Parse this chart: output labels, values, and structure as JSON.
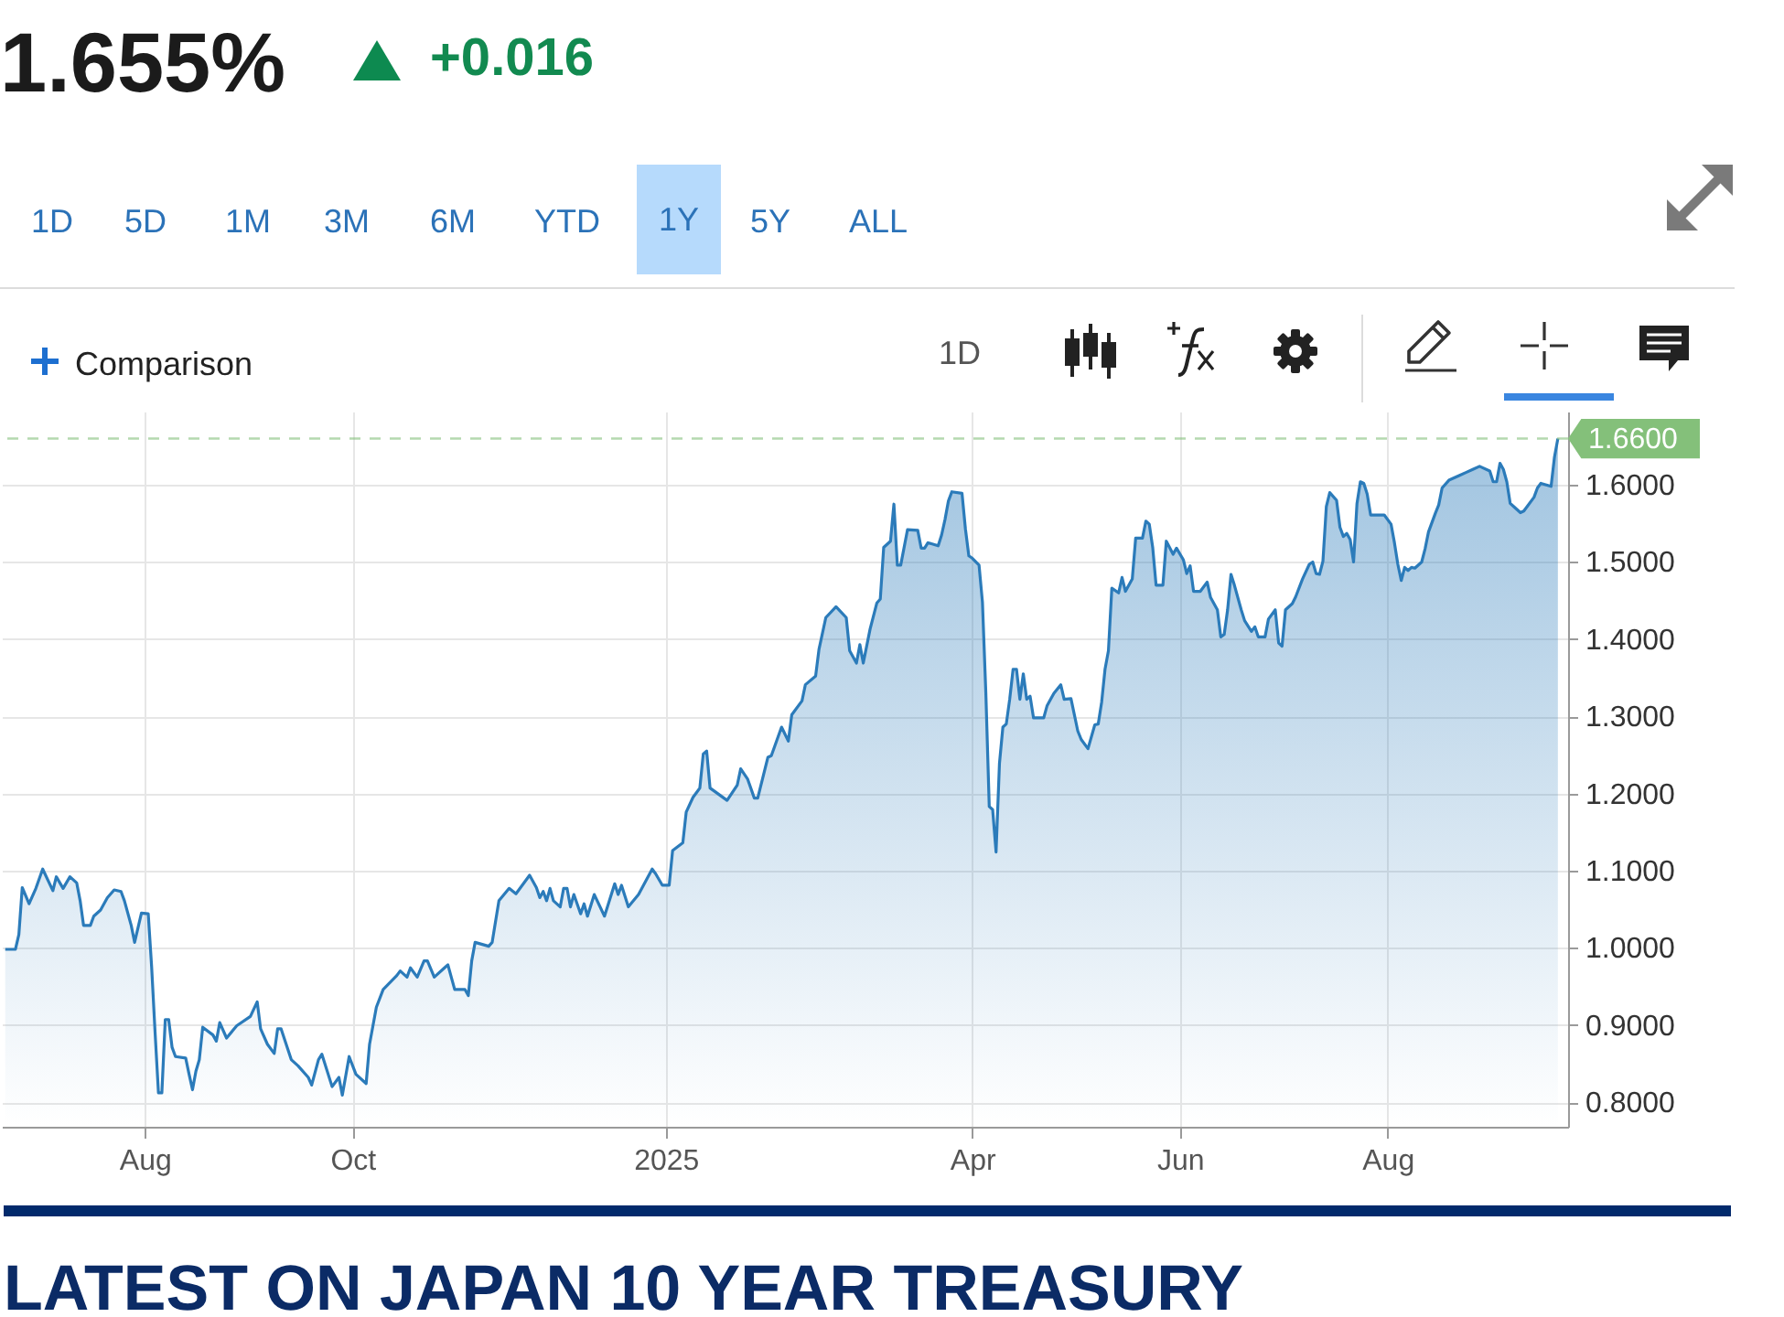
{
  "chart_data": {
    "type": "area",
    "color": "#2b7bba",
    "grid": true,
    "annotations": [
      "1.655%",
      "+0.016",
      "1D",
      "5D",
      "1M",
      "3M",
      "6M",
      "YTD",
      "1Y",
      "5Y",
      "ALL",
      "Comparison",
      "1D",
      "LATEST ON JAPAN 10 YEAR TREASURY"
    ],
    "xlim": [
      "2024-06-20",
      "2025-09-23"
    ],
    "xticks": [
      {
        "value": "2024-08-01",
        "label": "Aug"
      },
      {
        "value": "2024-10-01",
        "label": "Oct"
      },
      {
        "value": "2025-01-01",
        "label": "2025"
      },
      {
        "value": "2025-04-01",
        "label": "Apr"
      },
      {
        "value": "2025-06-01",
        "label": "Jun"
      },
      {
        "value": "2025-08-01",
        "label": "Aug"
      }
    ],
    "ylim": [
      0.768,
      1.695
    ],
    "yticks": [
      {
        "value": 0.8,
        "label": "0.8000"
      },
      {
        "value": 0.9,
        "label": "0.9000"
      },
      {
        "value": 1.0,
        "label": "1.0000"
      },
      {
        "value": 1.1,
        "label": "1.1000"
      },
      {
        "value": 1.2,
        "label": "1.2000"
      },
      {
        "value": 1.3,
        "label": "1.3000"
      },
      {
        "value": 1.4,
        "label": "1.4000"
      },
      {
        "value": 1.5,
        "label": "1.5000"
      },
      {
        "value": 1.6,
        "label": "1.6000"
      }
    ],
    "ref_lines": [
      {
        "axis": "y",
        "value": 1.66,
        "label": "1.6600",
        "color": "#84c07a",
        "line_style": "dashed"
      }
    ],
    "x": [
      "2024-06-21",
      "2024-06-24",
      "2024-06-25",
      "2024-06-26",
      "2024-06-28",
      "2024-06-30",
      "2024-07-02",
      "2024-07-05",
      "2024-07-06",
      "2024-07-08",
      "2024-07-10",
      "2024-07-12",
      "2024-07-13",
      "2024-07-14",
      "2024-07-16",
      "2024-07-17",
      "2024-07-19",
      "2024-07-21",
      "2024-07-23",
      "2024-07-25",
      "2024-07-26",
      "2024-07-28",
      "2024-07-29",
      "2024-07-31",
      "2024-08-02",
      "2024-08-03",
      "2024-08-04",
      "2024-08-05",
      "2024-08-06",
      "2024-08-07",
      "2024-08-08",
      "2024-08-09",
      "2024-08-10",
      "2024-08-13",
      "2024-08-14",
      "2024-08-15",
      "2024-08-16",
      "2024-08-17",
      "2024-08-18",
      "2024-08-21",
      "2024-08-22",
      "2024-08-23",
      "2024-08-25",
      "2024-08-28",
      "2024-09-01",
      "2024-09-03",
      "2024-09-04",
      "2024-09-06",
      "2024-09-08",
      "2024-09-09",
      "2024-09-10",
      "2024-09-13",
      "2024-09-15",
      "2024-09-18",
      "2024-09-19",
      "2024-09-21",
      "2024-09-22",
      "2024-09-25",
      "2024-09-27",
      "2024-09-28",
      "2024-09-30",
      "2024-10-02",
      "2024-10-05",
      "2024-10-06",
      "2024-10-08",
      "2024-10-10",
      "2024-10-14",
      "2024-10-15",
      "2024-10-17",
      "2024-10-18",
      "2024-10-20",
      "2024-10-22",
      "2024-10-23",
      "2024-10-25",
      "2024-10-28",
      "2024-10-29",
      "2024-10-31",
      "2024-11-03",
      "2024-11-04",
      "2024-11-05",
      "2024-11-06",
      "2024-11-10",
      "2024-11-11",
      "2024-11-13",
      "2024-11-16",
      "2024-11-18",
      "2024-11-22",
      "2024-11-24",
      "2024-11-25",
      "2024-11-26",
      "2024-11-27",
      "2024-11-28",
      "2024-11-29",
      "2024-12-01",
      "2024-12-02",
      "2024-12-03",
      "2024-12-04",
      "2024-12-05",
      "2024-12-07",
      "2024-12-08",
      "2024-12-09",
      "2024-12-11",
      "2024-12-14",
      "2024-12-17",
      "2024-12-18",
      "2024-12-19",
      "2024-12-21",
      "2024-12-24",
      "2024-12-28",
      "2024-12-29",
      "2024-12-31",
      "2025-01-02",
      "2025-01-03",
      "2025-01-06",
      "2025-01-07",
      "2025-01-09",
      "2025-01-11",
      "2025-01-12",
      "2025-01-13",
      "2025-01-14",
      "2025-01-19",
      "2025-01-22",
      "2025-01-23",
      "2025-01-25",
      "2025-01-27",
      "2025-01-28",
      "2025-01-31",
      "2025-02-01",
      "2025-02-04",
      "2025-02-06",
      "2025-02-07",
      "2025-02-10",
      "2025-02-11",
      "2025-02-14",
      "2025-02-15",
      "2025-02-17",
      "2025-02-20",
      "2025-02-23",
      "2025-02-24",
      "2025-02-26",
      "2025-02-27",
      "2025-02-28",
      "2025-03-02",
      "2025-03-04",
      "2025-03-05",
      "2025-03-06",
      "2025-03-08",
      "2025-03-09",
      "2025-03-10",
      "2025-03-11",
      "2025-03-13",
      "2025-03-16",
      "2025-03-17",
      "2025-03-18",
      "2025-03-19",
      "2025-03-22",
      "2025-03-23",
      "2025-03-24",
      "2025-03-25",
      "2025-03-26",
      "2025-03-29",
      "2025-03-30",
      "2025-03-31",
      "2025-04-01",
      "2025-04-03",
      "2025-04-04",
      "2025-04-05",
      "2025-04-06",
      "2025-04-07",
      "2025-04-08",
      "2025-04-09",
      "2025-04-10",
      "2025-04-11",
      "2025-04-12",
      "2025-04-13",
      "2025-04-14",
      "2025-04-15",
      "2025-04-16",
      "2025-04-17",
      "2025-04-18",
      "2025-04-19",
      "2025-04-22",
      "2025-04-23",
      "2025-04-25",
      "2025-04-27",
      "2025-04-28",
      "2025-04-30",
      "2025-05-02",
      "2025-05-03",
      "2025-05-05",
      "2025-05-07",
      "2025-05-08",
      "2025-05-09",
      "2025-05-10",
      "2025-05-11",
      "2025-05-12",
      "2025-05-14",
      "2025-05-15",
      "2025-05-16",
      "2025-05-18",
      "2025-05-19",
      "2025-05-21",
      "2025-05-22",
      "2025-05-23",
      "2025-05-24",
      "2025-05-25",
      "2025-05-27",
      "2025-05-28",
      "2025-05-30",
      "2025-05-31",
      "2025-06-02",
      "2025-06-03",
      "2025-06-04",
      "2025-06-05",
      "2025-06-07",
      "2025-06-09",
      "2025-06-10",
      "2025-06-12",
      "2025-06-13",
      "2025-06-14",
      "2025-06-15",
      "2025-06-16",
      "2025-06-17",
      "2025-06-19",
      "2025-06-20",
      "2025-06-22",
      "2025-06-23",
      "2025-06-24",
      "2025-06-26",
      "2025-06-27",
      "2025-06-29",
      "2025-06-30",
      "2025-07-01",
      "2025-07-02",
      "2025-07-04",
      "2025-07-05",
      "2025-07-07",
      "2025-07-09",
      "2025-07-10",
      "2025-07-11",
      "2025-07-12",
      "2025-07-13",
      "2025-07-14",
      "2025-07-15",
      "2025-07-17",
      "2025-07-18",
      "2025-07-19",
      "2025-07-20",
      "2025-07-21",
      "2025-07-22",
      "2025-07-23",
      "2025-07-24",
      "2025-07-25",
      "2025-07-26",
      "2025-07-27",
      "2025-07-31",
      "2025-08-02",
      "2025-08-03",
      "2025-08-04",
      "2025-08-05",
      "2025-08-06",
      "2025-08-07",
      "2025-08-08",
      "2025-08-09",
      "2025-08-11",
      "2025-08-12",
      "2025-08-13",
      "2025-08-15",
      "2025-08-16",
      "2025-08-17",
      "2025-08-19",
      "2025-08-22",
      "2025-08-24",
      "2025-08-26",
      "2025-08-28",
      "2025-08-31",
      "2025-09-01",
      "2025-09-02",
      "2025-09-03",
      "2025-09-04",
      "2025-09-05",
      "2025-09-06",
      "2025-09-07",
      "2025-09-09",
      "2025-09-10",
      "2025-09-13",
      "2025-09-14",
      "2025-09-15",
      "2025-09-18",
      "2025-09-19",
      "2025-09-20"
    ],
    "values": [
      0.998,
      0.998,
      1.017,
      1.078,
      1.057,
      1.077,
      1.102,
      1.074,
      1.092,
      1.077,
      1.092,
      1.084,
      1.061,
      1.029,
      1.029,
      1.041,
      1.049,
      1.065,
      1.075,
      1.073,
      1.061,
      1.029,
      1.007,
      1.045,
      1.044,
      0.975,
      0.891,
      0.812,
      0.812,
      0.907,
      0.907,
      0.871,
      0.859,
      0.857,
      0.836,
      0.816,
      0.84,
      0.855,
      0.897,
      0.887,
      0.879,
      0.903,
      0.883,
      0.899,
      0.911,
      0.93,
      0.895,
      0.875,
      0.863,
      0.895,
      0.895,
      0.855,
      0.847,
      0.832,
      0.822,
      0.855,
      0.862,
      0.82,
      0.832,
      0.809,
      0.859,
      0.836,
      0.824,
      0.875,
      0.923,
      0.946,
      0.964,
      0.97,
      0.962,
      0.974,
      0.962,
      0.983,
      0.983,
      0.962,
      0.974,
      0.978,
      0.946,
      0.946,
      0.938,
      0.983,
      1.007,
      1.002,
      1.007,
      1.061,
      1.077,
      1.07,
      1.094,
      1.078,
      1.065,
      1.073,
      1.061,
      1.077,
      1.061,
      1.053,
      1.077,
      1.077,
      1.053,
      1.069,
      1.044,
      1.057,
      1.041,
      1.069,
      1.041,
      1.083,
      1.069,
      1.081,
      1.053,
      1.069,
      1.102,
      1.096,
      1.081,
      1.081,
      1.126,
      1.136,
      1.176,
      1.195,
      1.207,
      1.251,
      1.255,
      1.207,
      1.191,
      1.211,
      1.232,
      1.219,
      1.194,
      1.194,
      1.247,
      1.249,
      1.286,
      1.268,
      1.302,
      1.32,
      1.341,
      1.352,
      1.387,
      1.428,
      1.442,
      1.428,
      1.385,
      1.369,
      1.393,
      1.369,
      1.413,
      1.447,
      1.452,
      1.519,
      1.527,
      1.575,
      1.496,
      1.496,
      1.542,
      1.541,
      1.518,
      1.518,
      1.525,
      1.521,
      1.535,
      1.555,
      1.579,
      1.591,
      1.589,
      1.543,
      1.508,
      1.505,
      1.496,
      1.448,
      1.33,
      1.183,
      1.179,
      1.124,
      1.239,
      1.286,
      1.29,
      1.322,
      1.361,
      1.361,
      1.322,
      1.355,
      1.322,
      1.326,
      1.298,
      1.298,
      1.314,
      1.33,
      1.341,
      1.322,
      1.323,
      1.281,
      1.27,
      1.258,
      1.289,
      1.29,
      1.318,
      1.361,
      1.385,
      1.466,
      1.46,
      1.48,
      1.462,
      1.478,
      1.531,
      1.531,
      1.553,
      1.549,
      1.519,
      1.47,
      1.47,
      1.527,
      1.51,
      1.518,
      1.503,
      1.485,
      1.495,
      1.462,
      1.462,
      1.474,
      1.454,
      1.438,
      1.403,
      1.406,
      1.438,
      1.484,
      1.47,
      1.438,
      1.424,
      1.41,
      1.416,
      1.403,
      1.403,
      1.426,
      1.438,
      1.395,
      1.391,
      1.438,
      1.446,
      1.455,
      1.478,
      1.497,
      1.5,
      1.485,
      1.484,
      1.501,
      1.572,
      1.59,
      1.58,
      1.545,
      1.533,
      1.537,
      1.529,
      1.5,
      1.576,
      1.604,
      1.602,
      1.588,
      1.561,
      1.561,
      1.549,
      1.525,
      1.497,
      1.476,
      1.493,
      1.489,
      1.493,
      1.492,
      1.5,
      1.517,
      1.539,
      1.563,
      1.574,
      1.596,
      1.606,
      1.612,
      1.616,
      1.62,
      1.624,
      1.618,
      1.604,
      1.604,
      1.628,
      1.62,
      1.604,
      1.576,
      1.572,
      1.564,
      1.566,
      1.584,
      1.596,
      1.602,
      1.598,
      1.636,
      1.66
    ]
  }
}
